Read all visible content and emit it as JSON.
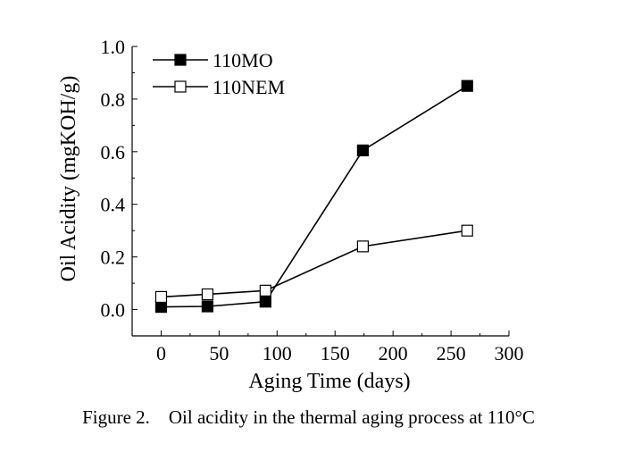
{
  "caption": "Figure 2.    Oil acidity in the thermal aging process at 110°C",
  "chart_data": {
    "type": "line",
    "title": "",
    "xlabel": "Aging Time (days)",
    "ylabel": "Oil Acidity (mgKOH/g)",
    "xlim": [
      -25,
      300
    ],
    "ylim": [
      -0.1,
      1.0
    ],
    "xticks": [
      0,
      50,
      100,
      150,
      200,
      250,
      300
    ],
    "yticks": [
      0.0,
      0.2,
      0.4,
      0.6,
      0.8,
      1.0
    ],
    "xtick_labels": [
      "0",
      "50",
      "100",
      "150",
      "200",
      "250",
      "300"
    ],
    "ytick_labels": [
      "0.0",
      "0.2",
      "0.4",
      "0.6",
      "0.8",
      "1.0"
    ],
    "grid": false,
    "legend_position": "top-left",
    "series": [
      {
        "name": "110MO",
        "marker": "filled-square",
        "color": "#000000",
        "x": [
          0,
          40,
          90,
          174,
          264
        ],
        "y": [
          0.01,
          0.012,
          0.03,
          0.605,
          0.85
        ]
      },
      {
        "name": "110NEM",
        "marker": "open-square",
        "color": "#000000",
        "x": [
          0,
          40,
          90,
          174,
          264
        ],
        "y": [
          0.048,
          0.058,
          0.072,
          0.24,
          0.3
        ]
      }
    ]
  }
}
